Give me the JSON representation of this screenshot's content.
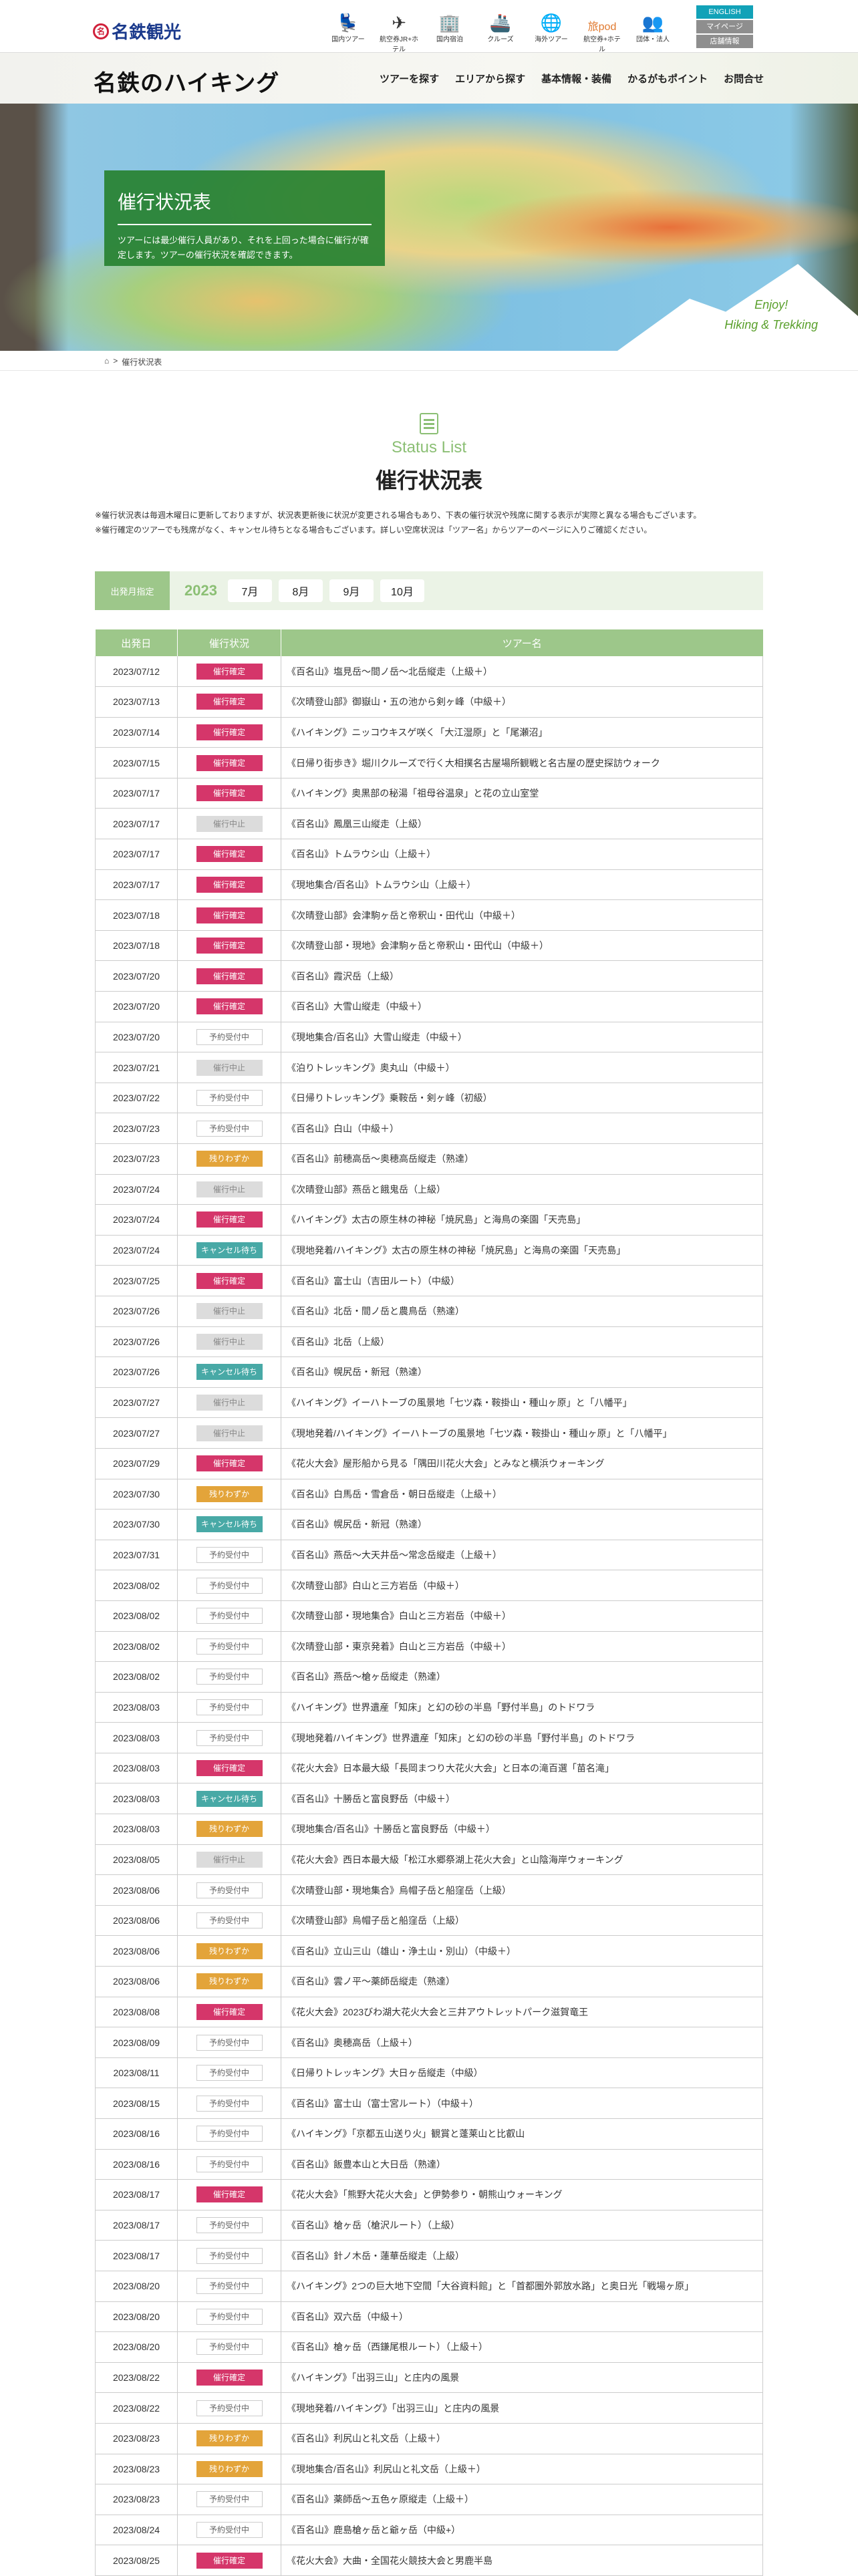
{
  "header": {
    "brand": "名鉄観光",
    "global_nav": [
      {
        "icon": "seat-icon",
        "glyph": "💺",
        "label": "国内ツアー"
      },
      {
        "icon": "plane-hotel-icon",
        "glyph": "✈",
        "label": "航空券JR+ホテル"
      },
      {
        "icon": "building-icon",
        "glyph": "🏢",
        "label": "国内宿泊"
      },
      {
        "icon": "ship-icon",
        "glyph": "🚢",
        "label": "クルーズ"
      },
      {
        "icon": "globe-icon",
        "glyph": "🌐",
        "label": "海外ツアー"
      },
      {
        "icon": "tabipod-logo",
        "glyph": "旅pod",
        "label": "航空券+ホテル"
      },
      {
        "icon": "people-icon",
        "glyph": "👥",
        "label": "団体・法人"
      }
    ],
    "english": "ENGLISH",
    "mypage": "マイページ",
    "stores": "店舗情報",
    "colors": {
      "english": "#12a2b8",
      "gray": "#8e8e8e"
    }
  },
  "subnav": {
    "logo": "名鉄のハイキング",
    "links": [
      "ツアーを探す",
      "エリアから探す",
      "基本情報・装備",
      "かるがもポイント",
      "お問合せ"
    ]
  },
  "hero": {
    "title": "催行状況表",
    "text": "ツアーには最少催行人員があり、それを上回った場合に催行が確定します。ツアーの催行状況を確認できます。",
    "enjoy": "Enjoy!",
    "tagline": "Hiking & Trekking"
  },
  "breadcrumb": {
    "home_icon": "home-icon",
    "sep": ">",
    "current": "催行状況表"
  },
  "section": {
    "en": "Status List",
    "title": "催行状況表",
    "notes": [
      "※催行状況表は毎週木曜日に更新しておりますが、状況表更新後に状況が変更される場合もあり、下表の催行状況や残席に関する表示が実際と異なる場合もございます。",
      "※催行確定のツアーでも残席がなく、キャンセル待ちとなる場合もございます。詳しい空席状況は「ツアー名」からツアーのページに入りご確認ください。"
    ]
  },
  "filter": {
    "label": "出発月指定",
    "year": "2023",
    "months": [
      "7月",
      "8月",
      "9月",
      "10月"
    ]
  },
  "table": {
    "headers": [
      "出発日",
      "催行状況",
      "ツアー名"
    ],
    "status_colors": {
      "催行確定": "#d5366a",
      "催行中止": "#dcdcdc",
      "予約受付中": "#ffffff",
      "残りわずか": "#e3a43a",
      "キャンセル待ち": "#48a9a6"
    },
    "rows": [
      {
        "date": "2023/07/12",
        "status": "催行確定",
        "tour": "《百名山》塩見岳～間ノ岳～北岳縦走（上級＋）"
      },
      {
        "date": "2023/07/13",
        "status": "催行確定",
        "tour": "《次晴登山部》御嶽山・五の池から剣ヶ峰（中級＋）"
      },
      {
        "date": "2023/07/14",
        "status": "催行確定",
        "tour": "《ハイキング》ニッコウキスゲ咲く「大江湿原」と「尾瀬沼」"
      },
      {
        "date": "2023/07/15",
        "status": "催行確定",
        "tour": "《日帰り街歩き》堀川クルーズで行く大相撲名古屋場所観戦と名古屋の歴史探訪ウォーク"
      },
      {
        "date": "2023/07/17",
        "status": "催行確定",
        "tour": "《ハイキング》奥黒部の秘湯「祖母谷温泉」と花の立山室堂"
      },
      {
        "date": "2023/07/17",
        "status": "催行中止",
        "tour": "《百名山》鳳凰三山縦走（上級）"
      },
      {
        "date": "2023/07/17",
        "status": "催行確定",
        "tour": "《百名山》トムラウシ山（上級＋）"
      },
      {
        "date": "2023/07/17",
        "status": "催行確定",
        "tour": "《現地集合/百名山》トムラウシ山（上級＋）"
      },
      {
        "date": "2023/07/18",
        "status": "催行確定",
        "tour": "《次晴登山部》会津駒ヶ岳と帝釈山・田代山（中級＋）"
      },
      {
        "date": "2023/07/18",
        "status": "催行確定",
        "tour": "《次晴登山部・現地》会津駒ヶ岳と帝釈山・田代山（中級＋）"
      },
      {
        "date": "2023/07/20",
        "status": "催行確定",
        "tour": "《百名山》霞沢岳（上級）"
      },
      {
        "date": "2023/07/20",
        "status": "催行確定",
        "tour": "《百名山》大雪山縦走（中級＋）"
      },
      {
        "date": "2023/07/20",
        "status": "予約受付中",
        "tour": "《現地集合/百名山》大雪山縦走（中級＋）"
      },
      {
        "date": "2023/07/21",
        "status": "催行中止",
        "tour": "《泊りトレッキング》奥丸山（中級＋）"
      },
      {
        "date": "2023/07/22",
        "status": "予約受付中",
        "tour": "《日帰りトレッキング》乗鞍岳・剣ヶ峰（初級）"
      },
      {
        "date": "2023/07/23",
        "status": "予約受付中",
        "tour": "《百名山》白山（中級＋）"
      },
      {
        "date": "2023/07/23",
        "status": "残りわずか",
        "tour": "《百名山》前穂高岳～奥穂高岳縦走（熟達）"
      },
      {
        "date": "2023/07/24",
        "status": "催行中止",
        "tour": "《次晴登山部》燕岳と餓鬼岳（上級）"
      },
      {
        "date": "2023/07/24",
        "status": "催行確定",
        "tour": "《ハイキング》太古の原生林の神秘「焼尻島」と海鳥の楽園「天売島」"
      },
      {
        "date": "2023/07/24",
        "status": "キャンセル待ち",
        "tour": "《現地発着/ハイキング》太古の原生林の神秘「焼尻島」と海鳥の楽園「天売島」"
      },
      {
        "date": "2023/07/25",
        "status": "催行確定",
        "tour": "《百名山》富士山（吉田ルート）（中級）"
      },
      {
        "date": "2023/07/26",
        "status": "催行中止",
        "tour": "《百名山》北岳・間ノ岳と農鳥岳（熟達）"
      },
      {
        "date": "2023/07/26",
        "status": "催行中止",
        "tour": "《百名山》北岳（上級）"
      },
      {
        "date": "2023/07/26",
        "status": "キャンセル待ち",
        "tour": "《百名山》幌尻岳・新冠（熟達）"
      },
      {
        "date": "2023/07/27",
        "status": "催行中止",
        "tour": "《ハイキング》イーハトーブの風景地「七ツ森・鞍掛山・種山ヶ原」と「八幡平」"
      },
      {
        "date": "2023/07/27",
        "status": "催行中止",
        "tour": "《現地発着/ハイキング》イーハトーブの風景地「七ツ森・鞍掛山・種山ヶ原」と「八幡平」"
      },
      {
        "date": "2023/07/29",
        "status": "催行確定",
        "tour": "《花火大会》屋形船から見る「隅田川花火大会」とみなと横浜ウォーキング"
      },
      {
        "date": "2023/07/30",
        "status": "残りわずか",
        "tour": "《百名山》白馬岳・雪倉岳・朝日岳縦走（上級＋）"
      },
      {
        "date": "2023/07/30",
        "status": "キャンセル待ち",
        "tour": "《百名山》幌尻岳・新冠（熟達）"
      },
      {
        "date": "2023/07/31",
        "status": "予約受付中",
        "tour": "《百名山》燕岳～大天井岳～常念岳縦走（上級＋）"
      },
      {
        "date": "2023/08/02",
        "status": "予約受付中",
        "tour": "《次晴登山部》白山と三方岩岳（中級＋）"
      },
      {
        "date": "2023/08/02",
        "status": "予約受付中",
        "tour": "《次晴登山部・現地集合》白山と三方岩岳（中級＋）"
      },
      {
        "date": "2023/08/02",
        "status": "予約受付中",
        "tour": "《次晴登山部・東京発着》白山と三方岩岳（中級＋）"
      },
      {
        "date": "2023/08/02",
        "status": "予約受付中",
        "tour": "《百名山》燕岳～槍ヶ岳縦走（熟達）"
      },
      {
        "date": "2023/08/03",
        "status": "予約受付中",
        "tour": "《ハイキング》世界遺産「知床」と幻の砂の半島「野付半島」のトドワラ"
      },
      {
        "date": "2023/08/03",
        "status": "予約受付中",
        "tour": "《現地発着/ハイキング》世界遺産「知床」と幻の砂の半島「野付半島」のトドワラ"
      },
      {
        "date": "2023/08/03",
        "status": "催行確定",
        "tour": "《花火大会》日本最大級「長岡まつり大花火大会」と日本の滝百選「苗名滝」"
      },
      {
        "date": "2023/08/03",
        "status": "キャンセル待ち",
        "tour": "《百名山》十勝岳と富良野岳（中級＋）"
      },
      {
        "date": "2023/08/03",
        "status": "残りわずか",
        "tour": "《現地集合/百名山》十勝岳と富良野岳（中級＋）"
      },
      {
        "date": "2023/08/05",
        "status": "催行中止",
        "tour": "《花火大会》西日本最大級「松江水郷祭湖上花火大会」と山陰海岸ウォーキング"
      },
      {
        "date": "2023/08/06",
        "status": "予約受付中",
        "tour": "《次晴登山部・現地集合》烏帽子岳と船窪岳（上級）"
      },
      {
        "date": "2023/08/06",
        "status": "予約受付中",
        "tour": "《次晴登山部》烏帽子岳と船窪岳（上級）"
      },
      {
        "date": "2023/08/06",
        "status": "残りわずか",
        "tour": "《百名山》立山三山（雄山・浄土山・別山）（中級＋）"
      },
      {
        "date": "2023/08/06",
        "status": "残りわずか",
        "tour": "《百名山》雲ノ平～薬師岳縦走（熟達）"
      },
      {
        "date": "2023/08/08",
        "status": "催行確定",
        "tour": "《花火大会》2023びわ湖大花火大会と三井アウトレットパーク滋賀竜王"
      },
      {
        "date": "2023/08/09",
        "status": "予約受付中",
        "tour": "《百名山》奥穂高岳（上級＋）"
      },
      {
        "date": "2023/08/11",
        "status": "予約受付中",
        "tour": "《日帰りトレッキング》大日ヶ岳縦走（中級）"
      },
      {
        "date": "2023/08/15",
        "status": "予約受付中",
        "tour": "《百名山》富士山（富士宮ルート）（中級＋）"
      },
      {
        "date": "2023/08/16",
        "status": "予約受付中",
        "tour": "《ハイキング》「京都五山送り火」観賞と蓬莱山と比叡山"
      },
      {
        "date": "2023/08/16",
        "status": "予約受付中",
        "tour": "《百名山》飯豊本山と大日岳（熟達）"
      },
      {
        "date": "2023/08/17",
        "status": "催行確定",
        "tour": "《花火大会》「熊野大花火大会」と伊勢参り・朝熊山ウォーキング"
      },
      {
        "date": "2023/08/17",
        "status": "予約受付中",
        "tour": "《百名山》槍ヶ岳（槍沢ルート）（上級）"
      },
      {
        "date": "2023/08/17",
        "status": "予約受付中",
        "tour": "《百名山》針ノ木岳・蓮華岳縦走（上級）"
      },
      {
        "date": "2023/08/20",
        "status": "予約受付中",
        "tour": "《ハイキング》2つの巨大地下空間「大谷資料館」と「首都圏外郭放水路」と奥日光「戦場ヶ原」"
      },
      {
        "date": "2023/08/20",
        "status": "予約受付中",
        "tour": "《百名山》双六岳（中級＋）"
      },
      {
        "date": "2023/08/20",
        "status": "予約受付中",
        "tour": "《百名山》槍ヶ岳（西鎌尾根ルート）（上級＋）"
      },
      {
        "date": "2023/08/22",
        "status": "催行確定",
        "tour": "《ハイキング》「出羽三山」と庄内の風景"
      },
      {
        "date": "2023/08/22",
        "status": "予約受付中",
        "tour": "《現地発着/ハイキング》「出羽三山」と庄内の風景"
      },
      {
        "date": "2023/08/23",
        "status": "残りわずか",
        "tour": "《百名山》利尻山と礼文岳（上級＋）"
      },
      {
        "date": "2023/08/23",
        "status": "残りわずか",
        "tour": "《現地集合/百名山》利尻山と礼文岳（上級＋）"
      },
      {
        "date": "2023/08/23",
        "status": "予約受付中",
        "tour": "《百名山》薬師岳～五色ヶ原縦走（上級＋）"
      },
      {
        "date": "2023/08/24",
        "status": "予約受付中",
        "tour": "《百名山》鹿島槍ヶ岳と爺ヶ岳（中級+）"
      },
      {
        "date": "2023/08/25",
        "status": "催行確定",
        "tour": "《花火大会》大曲・全国花火競技大会と男鹿半島"
      }
    ]
  }
}
